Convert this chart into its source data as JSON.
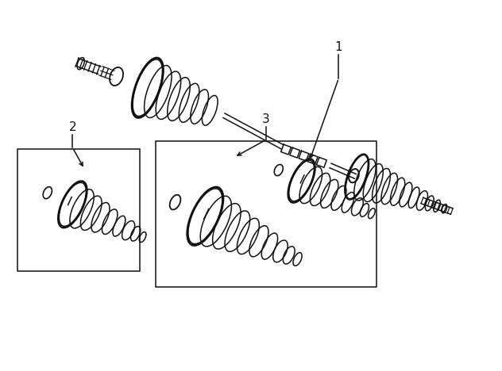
{
  "bg_color": "#ffffff",
  "line_color": "#111111",
  "fig_width": 6.32,
  "fig_height": 4.68,
  "dpi": 100,
  "label1": "1",
  "label2": "2",
  "label3": "3"
}
